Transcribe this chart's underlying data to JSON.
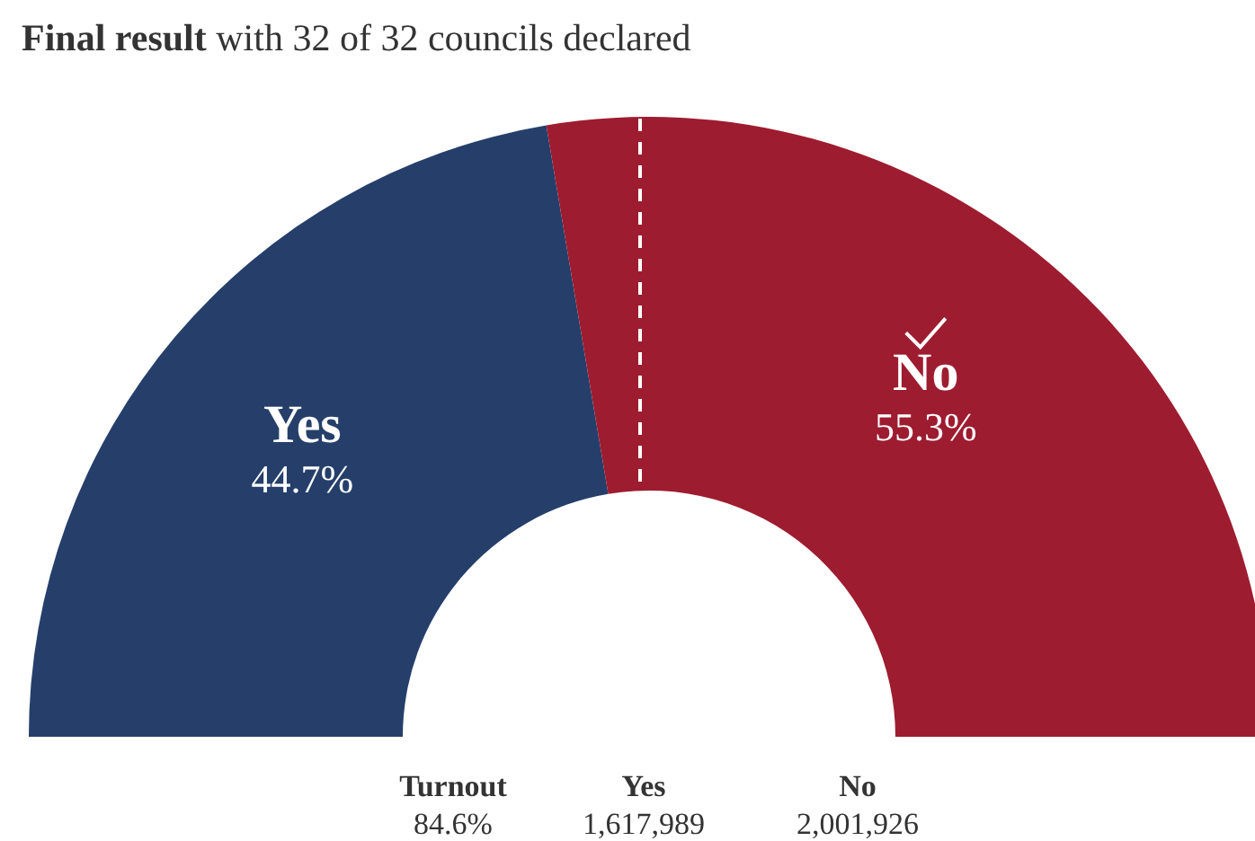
{
  "chart_data": {
    "type": "donut",
    "title": "Final result",
    "subtitle": "with 32 of 32 councils declared",
    "categories": [
      "Yes",
      "No"
    ],
    "values": [
      44.7,
      55.3
    ],
    "colors": [
      "#253f6a",
      "#9e1c30"
    ],
    "value_labels": [
      "44.7%",
      "55.3%"
    ],
    "annotations": [
      "Turnout",
      "84.6%",
      "Yes",
      "1,617,989",
      "No",
      "2,001,926"
    ]
  }
}
